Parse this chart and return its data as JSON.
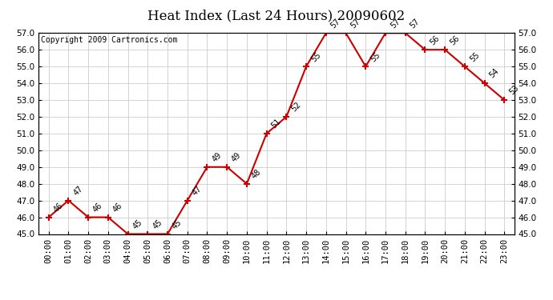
{
  "title": "Heat Index (Last 24 Hours) 20090602",
  "copyright": "Copyright 2009 Cartronics.com",
  "hours": [
    "00:00",
    "01:00",
    "02:00",
    "03:00",
    "04:00",
    "05:00",
    "06:00",
    "07:00",
    "08:00",
    "09:00",
    "10:00",
    "11:00",
    "12:00",
    "13:00",
    "14:00",
    "15:00",
    "16:00",
    "17:00",
    "18:00",
    "19:00",
    "20:00",
    "21:00",
    "22:00",
    "23:00"
  ],
  "values": [
    46,
    47,
    46,
    46,
    45,
    45,
    45,
    47,
    49,
    49,
    48,
    51,
    52,
    55,
    57,
    57,
    55,
    57,
    57,
    56,
    56,
    55,
    54,
    53
  ],
  "ylim_min": 45.0,
  "ylim_max": 57.0,
  "ytick_step": 1.0,
  "line_color": "#cc0000",
  "marker_style": "+",
  "marker_size": 6,
  "grid_color": "#cccccc",
  "bg_color": "#ffffff",
  "label_color": "#000000",
  "title_fontsize": 12,
  "tick_fontsize": 7.5,
  "annotation_fontsize": 7,
  "copyright_fontsize": 7,
  "linewidth": 1.5
}
